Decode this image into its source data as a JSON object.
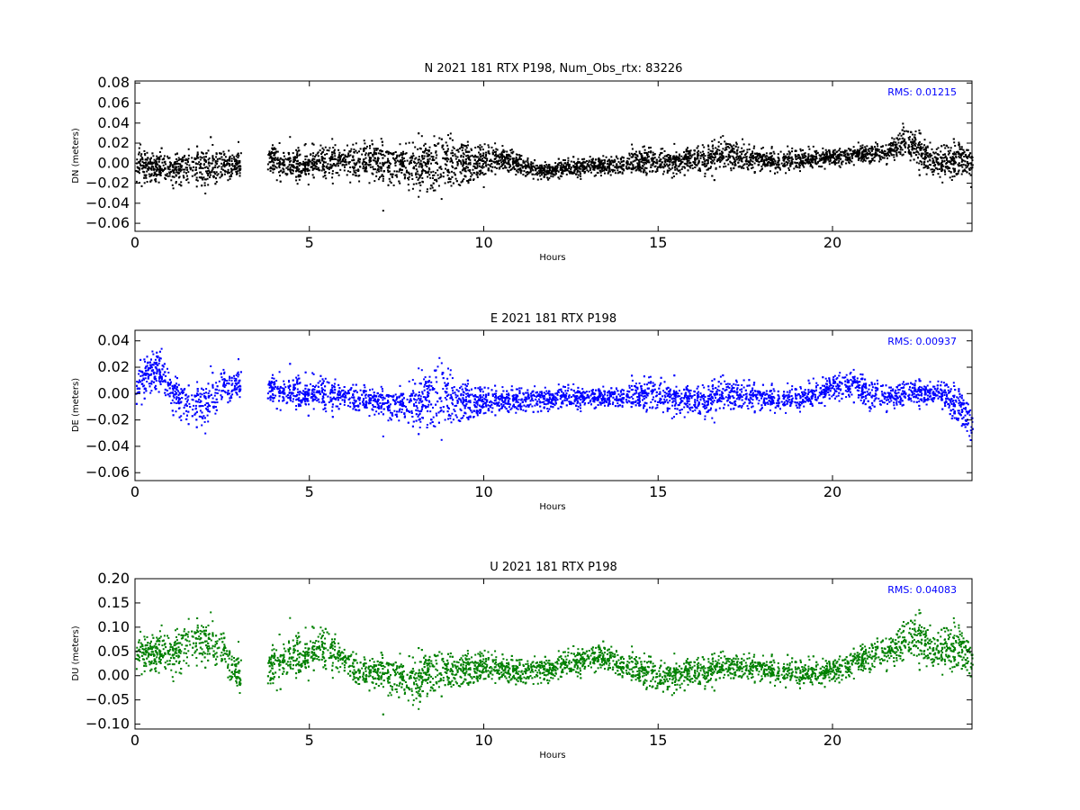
{
  "chart_data": [
    {
      "type": "scatter",
      "title": "N 2021 181 RTX  P198, Num_Obs_rtx: 83226",
      "xlabel": "Hours",
      "ylabel": "DN (meters)",
      "xlim": [
        0,
        24
      ],
      "ylim": [
        -0.068,
        0.082
      ],
      "xticks": [
        0,
        5,
        10,
        15,
        20
      ],
      "xtick_labels": [
        "0",
        "5",
        "10",
        "15",
        "20"
      ],
      "yticks": [
        -0.06,
        -0.04,
        -0.02,
        0.0,
        0.02,
        0.04,
        0.06,
        0.08
      ],
      "ytick_labels": [
        "−0.06",
        "−0.04",
        "−0.02",
        "0.00",
        "0.02",
        "0.04",
        "0.06",
        "0.08"
      ],
      "grid": false,
      "rms_text": "RMS:  0.01215",
      "rms_color": "#0000ff",
      "series": [
        {
          "color": "#000000",
          "gaps": [
            [
              3.02,
              3.78
            ],
            [
              14.0,
              14.06
            ]
          ],
          "profile": [
            {
              "x": 0.0,
              "mean": 0.0,
              "spread": 0.018
            },
            {
              "x": 0.5,
              "mean": -0.003,
              "spread": 0.013
            },
            {
              "x": 1.0,
              "mean": -0.004,
              "spread": 0.013
            },
            {
              "x": 1.5,
              "mean": -0.002,
              "spread": 0.017
            },
            {
              "x": 2.0,
              "mean": 0.0,
              "spread": 0.024
            },
            {
              "x": 2.5,
              "mean": 0.0,
              "spread": 0.016
            },
            {
              "x": 3.0,
              "mean": 0.0,
              "spread": 0.013
            },
            {
              "x": 3.8,
              "mean": 0.003,
              "spread": 0.014
            },
            {
              "x": 4.5,
              "mean": 0.0,
              "spread": 0.015
            },
            {
              "x": 5.5,
              "mean": 0.002,
              "spread": 0.015
            },
            {
              "x": 6.5,
              "mean": 0.003,
              "spread": 0.018
            },
            {
              "x": 7.0,
              "mean": 0.002,
              "spread": 0.021
            },
            {
              "x": 7.5,
              "mean": 0.0,
              "spread": 0.016
            },
            {
              "x": 8.5,
              "mean": -0.003,
              "spread": 0.027
            },
            {
              "x": 9.0,
              "mean": 0.002,
              "spread": 0.027
            },
            {
              "x": 9.5,
              "mean": 0.0,
              "spread": 0.019
            },
            {
              "x": 10.5,
              "mean": 0.005,
              "spread": 0.012
            },
            {
              "x": 11.5,
              "mean": -0.006,
              "spread": 0.008
            },
            {
              "x": 12.5,
              "mean": -0.004,
              "spread": 0.008
            },
            {
              "x": 13.5,
              "mean": -0.002,
              "spread": 0.009
            },
            {
              "x": 14.5,
              "mean": 0.002,
              "spread": 0.011
            },
            {
              "x": 15.5,
              "mean": 0.003,
              "spread": 0.012
            },
            {
              "x": 16.5,
              "mean": 0.007,
              "spread": 0.014
            },
            {
              "x": 17.0,
              "mean": 0.01,
              "spread": 0.015
            },
            {
              "x": 17.5,
              "mean": 0.005,
              "spread": 0.012
            },
            {
              "x": 18.5,
              "mean": 0.003,
              "spread": 0.01
            },
            {
              "x": 19.5,
              "mean": 0.005,
              "spread": 0.009
            },
            {
              "x": 20.5,
              "mean": 0.008,
              "spread": 0.008
            },
            {
              "x": 21.5,
              "mean": 0.012,
              "spread": 0.01
            },
            {
              "x": 22.0,
              "mean": 0.022,
              "spread": 0.014
            },
            {
              "x": 22.5,
              "mean": 0.012,
              "spread": 0.018
            },
            {
              "x": 23.0,
              "mean": 0.0,
              "spread": 0.018
            },
            {
              "x": 24.0,
              "mean": 0.005,
              "spread": 0.015
            }
          ]
        }
      ]
    },
    {
      "type": "scatter",
      "title": "E 2021 181 RTX  P198",
      "xlabel": "Hours",
      "ylabel": "DE (meters)",
      "xlim": [
        0,
        24
      ],
      "ylim": [
        -0.066,
        0.048
      ],
      "xticks": [
        0,
        5,
        10,
        15,
        20
      ],
      "xtick_labels": [
        "0",
        "5",
        "10",
        "15",
        "20"
      ],
      "yticks": [
        -0.06,
        -0.04,
        -0.02,
        0.0,
        0.02,
        0.04
      ],
      "ytick_labels": [
        "−0.06",
        "−0.04",
        "−0.02",
        "0.00",
        "0.02",
        "0.04"
      ],
      "grid": false,
      "rms_text": "RMS:  0.00937",
      "rms_color": "#0000ff",
      "series": [
        {
          "color": "#0000ff",
          "gaps": [
            [
              3.02,
              3.78
            ],
            [
              14.0,
              14.06
            ]
          ],
          "profile": [
            {
              "x": 0.0,
              "mean": 0.005,
              "spread": 0.013
            },
            {
              "x": 0.3,
              "mean": 0.015,
              "spread": 0.015
            },
            {
              "x": 0.6,
              "mean": 0.02,
              "spread": 0.014
            },
            {
              "x": 1.0,
              "mean": 0.005,
              "spread": 0.012
            },
            {
              "x": 1.5,
              "mean": -0.008,
              "spread": 0.015
            },
            {
              "x": 2.0,
              "mean": -0.005,
              "spread": 0.02
            },
            {
              "x": 2.5,
              "mean": 0.008,
              "spread": 0.014
            },
            {
              "x": 3.0,
              "mean": 0.008,
              "spread": 0.011
            },
            {
              "x": 3.8,
              "mean": 0.003,
              "spread": 0.01
            },
            {
              "x": 4.5,
              "mean": 0.002,
              "spread": 0.012
            },
            {
              "x": 5.5,
              "mean": 0.0,
              "spread": 0.012
            },
            {
              "x": 6.5,
              "mean": -0.004,
              "spread": 0.01
            },
            {
              "x": 7.5,
              "mean": -0.008,
              "spread": 0.011
            },
            {
              "x": 8.3,
              "mean": -0.005,
              "spread": 0.02
            },
            {
              "x": 8.7,
              "mean": 0.0,
              "spread": 0.028
            },
            {
              "x": 9.2,
              "mean": -0.005,
              "spread": 0.016
            },
            {
              "x": 10.0,
              "mean": -0.006,
              "spread": 0.01
            },
            {
              "x": 11.0,
              "mean": -0.004,
              "spread": 0.009
            },
            {
              "x": 12.0,
              "mean": -0.002,
              "spread": 0.008
            },
            {
              "x": 13.0,
              "mean": -0.003,
              "spread": 0.007
            },
            {
              "x": 14.0,
              "mean": -0.002,
              "spread": 0.008
            },
            {
              "x": 15.0,
              "mean": 0.0,
              "spread": 0.012
            },
            {
              "x": 16.0,
              "mean": -0.005,
              "spread": 0.011
            },
            {
              "x": 17.0,
              "mean": 0.0,
              "spread": 0.012
            },
            {
              "x": 18.0,
              "mean": -0.003,
              "spread": 0.009
            },
            {
              "x": 19.0,
              "mean": -0.004,
              "spread": 0.008
            },
            {
              "x": 20.0,
              "mean": 0.005,
              "spread": 0.01
            },
            {
              "x": 20.5,
              "mean": 0.008,
              "spread": 0.011
            },
            {
              "x": 21.0,
              "mean": 0.0,
              "spread": 0.012
            },
            {
              "x": 22.0,
              "mean": 0.0,
              "spread": 0.009
            },
            {
              "x": 23.0,
              "mean": 0.002,
              "spread": 0.009
            },
            {
              "x": 23.5,
              "mean": -0.008,
              "spread": 0.012
            },
            {
              "x": 24.0,
              "mean": -0.02,
              "spread": 0.016
            }
          ]
        }
      ]
    },
    {
      "type": "scatter",
      "title": "U 2021 181 RTX  P198",
      "xlabel": "Hours",
      "ylabel": "DU (meters)",
      "xlim": [
        0,
        24
      ],
      "ylim": [
        -0.11,
        0.2
      ],
      "xticks": [
        0,
        5,
        10,
        15,
        20
      ],
      "xtick_labels": [
        "0",
        "5",
        "10",
        "15",
        "20"
      ],
      "yticks": [
        -0.1,
        -0.05,
        0.0,
        0.05,
        0.1,
        0.15,
        0.2
      ],
      "ytick_labels": [
        "−0.10",
        "−0.05",
        "0.00",
        "0.05",
        "0.10",
        "0.15",
        "0.20"
      ],
      "grid": false,
      "rms_text": "RMS:  0.04083",
      "rms_color": "#0000ff",
      "series": [
        {
          "color": "#008000",
          "gaps": [
            [
              3.02,
              3.78
            ],
            [
              14.0,
              14.06
            ]
          ],
          "profile": [
            {
              "x": 0.0,
              "mean": 0.05,
              "spread": 0.035
            },
            {
              "x": 0.5,
              "mean": 0.05,
              "spread": 0.035
            },
            {
              "x": 1.0,
              "mean": 0.05,
              "spread": 0.04
            },
            {
              "x": 1.5,
              "mean": 0.07,
              "spread": 0.05
            },
            {
              "x": 2.0,
              "mean": 0.08,
              "spread": 0.05
            },
            {
              "x": 2.5,
              "mean": 0.06,
              "spread": 0.04
            },
            {
              "x": 2.8,
              "mean": 0.02,
              "spread": 0.04
            },
            {
              "x": 3.0,
              "mean": 0.0,
              "spread": 0.04
            },
            {
              "x": 3.8,
              "mean": 0.01,
              "spread": 0.04
            },
            {
              "x": 4.3,
              "mean": 0.04,
              "spread": 0.045
            },
            {
              "x": 5.0,
              "mean": 0.05,
              "spread": 0.04
            },
            {
              "x": 5.5,
              "mean": 0.06,
              "spread": 0.04
            },
            {
              "x": 6.0,
              "mean": 0.03,
              "spread": 0.035
            },
            {
              "x": 6.5,
              "mean": 0.005,
              "spread": 0.03
            },
            {
              "x": 7.0,
              "mean": 0.01,
              "spread": 0.035
            },
            {
              "x": 7.5,
              "mean": 0.0,
              "spread": 0.04
            },
            {
              "x": 8.0,
              "mean": -0.01,
              "spread": 0.045
            },
            {
              "x": 8.5,
              "mean": 0.01,
              "spread": 0.045
            },
            {
              "x": 9.0,
              "mean": 0.01,
              "spread": 0.035
            },
            {
              "x": 10.0,
              "mean": 0.02,
              "spread": 0.03
            },
            {
              "x": 11.0,
              "mean": 0.01,
              "spread": 0.025
            },
            {
              "x": 12.0,
              "mean": 0.02,
              "spread": 0.025
            },
            {
              "x": 13.0,
              "mean": 0.035,
              "spread": 0.025
            },
            {
              "x": 13.5,
              "mean": 0.04,
              "spread": 0.03
            },
            {
              "x": 14.0,
              "mean": 0.02,
              "spread": 0.025
            },
            {
              "x": 15.0,
              "mean": 0.0,
              "spread": 0.03
            },
            {
              "x": 16.0,
              "mean": 0.01,
              "spread": 0.03
            },
            {
              "x": 17.0,
              "mean": 0.02,
              "spread": 0.025
            },
            {
              "x": 18.0,
              "mean": 0.015,
              "spread": 0.025
            },
            {
              "x": 19.0,
              "mean": 0.005,
              "spread": 0.025
            },
            {
              "x": 20.0,
              "mean": 0.01,
              "spread": 0.025
            },
            {
              "x": 21.0,
              "mean": 0.04,
              "spread": 0.03
            },
            {
              "x": 22.0,
              "mean": 0.07,
              "spread": 0.04
            },
            {
              "x": 22.5,
              "mean": 0.08,
              "spread": 0.05
            },
            {
              "x": 23.0,
              "mean": 0.05,
              "spread": 0.045
            },
            {
              "x": 23.5,
              "mean": 0.06,
              "spread": 0.045
            },
            {
              "x": 24.0,
              "mean": 0.04,
              "spread": 0.04
            }
          ]
        }
      ]
    }
  ]
}
